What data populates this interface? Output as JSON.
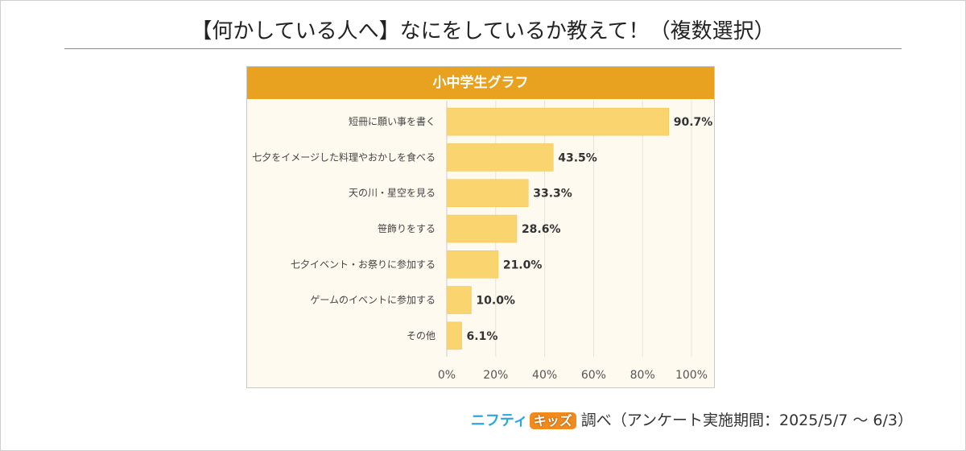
{
  "title": "【何かしている人へ】なにをしているか教えて！（複数選択）",
  "footer": {
    "brand_part1": "ニフティ",
    "brand_part2": "キッズ",
    "note": "調べ（アンケート実施期間：2025/5/7 ～ 6/3）"
  },
  "colors": {
    "header": "#e8a21f",
    "bar": "#fad46e",
    "plot_background": "#fffaf0",
    "brand_blue": "#29a8de",
    "brand_orange": "#f28a1e"
  },
  "chart_data": {
    "type": "bar",
    "orientation": "horizontal",
    "title": "小中学生グラフ",
    "categories": [
      "短冊に願い事を書く",
      "七夕をイメージした料理やおかしを食べる",
      "天の川・星空を見る",
      "笹飾りをする",
      "七夕イベント・お祭りに参加する",
      "ゲームのイベントに参加する",
      "その他"
    ],
    "values": [
      90.7,
      43.5,
      33.3,
      28.6,
      21.0,
      10.0,
      6.1
    ],
    "value_labels": [
      "90.7%",
      "43.5%",
      "33.3%",
      "28.6%",
      "21.0%",
      "10.0%",
      "6.1%"
    ],
    "xlim": [
      0,
      100
    ],
    "xticks": [
      "0%",
      "20%",
      "40%",
      "60%",
      "80%",
      "100%"
    ],
    "grid": true,
    "legend": "none"
  }
}
